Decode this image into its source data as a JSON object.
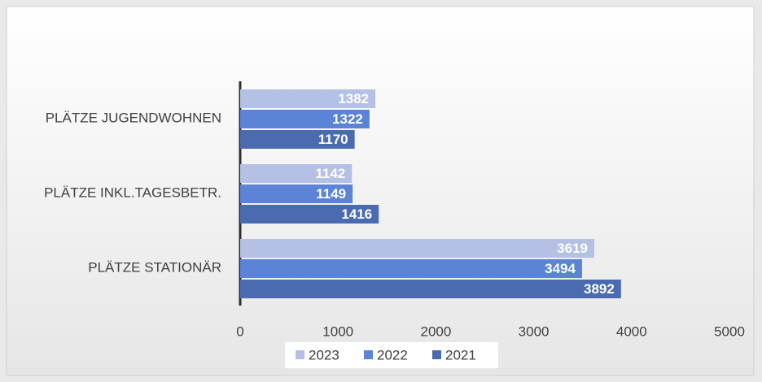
{
  "chart_data": {
    "type": "hbar",
    "categories": [
      "PLÄTZE JUGENDWOHNEN",
      "PLÄTZE INKL.TAGESBETR.",
      "PLÄTZE STATIONÄR"
    ],
    "series": [
      {
        "name": "2023",
        "color": "#b4c0e4",
        "values": [
          1382,
          1142,
          3619
        ]
      },
      {
        "name": "2022",
        "color": "#5b84d6",
        "values": [
          1322,
          1149,
          3494
        ]
      },
      {
        "name": "2021",
        "color": "#4a6bb0",
        "values": [
          1170,
          1416,
          3892
        ]
      }
    ],
    "xlim": [
      0,
      5000
    ],
    "xticks": [
      0,
      1000,
      2000,
      3000,
      4000,
      5000
    ],
    "grid": true,
    "legend": "bottom"
  }
}
